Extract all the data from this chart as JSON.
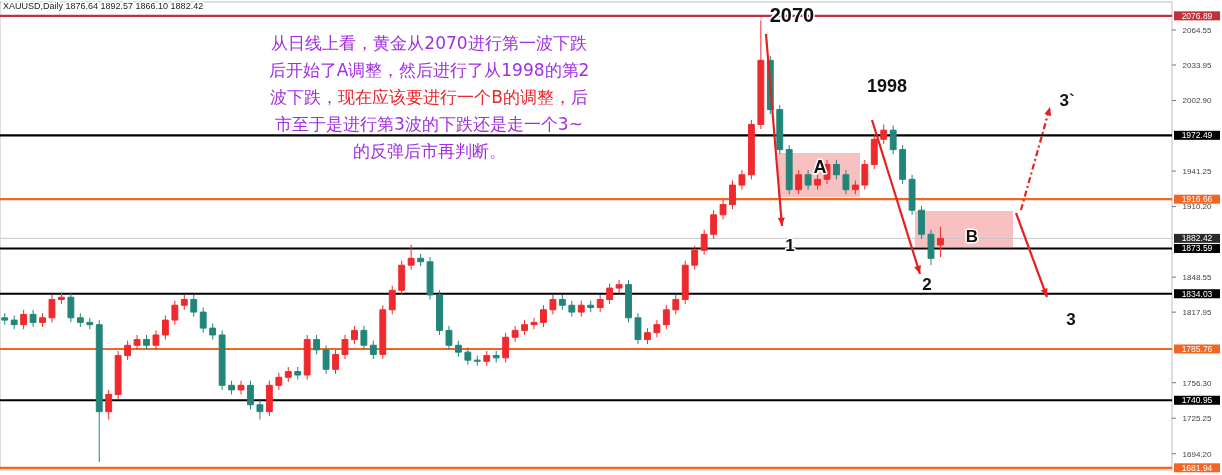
{
  "chart_data": {
    "type": "candlestick",
    "tick_labels": "y",
    "ylim": [
      1680,
      2089
    ],
    "yticks": [
      2064.55,
      2033.95,
      {
        "value": 2002.9,
        "label": "2002.90"
      },
      1941.25,
      {
        "value": 1910.2,
        "label": "1910.20"
      },
      1848.55,
      1817.95,
      {
        "value": 1756.3,
        "label": "1756.30"
      },
      1725.25,
      {
        "value": 1694.2,
        "label": "1694.20"
      }
    ],
    "categories": [
      null,
      null,
      null,
      null,
      null,
      null,
      null,
      null,
      null,
      null,
      null,
      null,
      null,
      null,
      null,
      null,
      null,
      null,
      null,
      null,
      null,
      null,
      null,
      null,
      null,
      null,
      null,
      null,
      null,
      null,
      null,
      null,
      null,
      null,
      null,
      null,
      null,
      null,
      null,
      null,
      null,
      null,
      null,
      null,
      null,
      null,
      null,
      null,
      null,
      null,
      null,
      null,
      null,
      null,
      null,
      null,
      null,
      null,
      null,
      null,
      null,
      null,
      null,
      null,
      null,
      null,
      null,
      null,
      null,
      null,
      null,
      null,
      null,
      null,
      null,
      null,
      null,
      null,
      null,
      null,
      null,
      null,
      null,
      null,
      null,
      null,
      null,
      null,
      null,
      null,
      null,
      null,
      null,
      null,
      null,
      null,
      null,
      null,
      null,
      null,
      null,
      null,
      null,
      null,
      null,
      null,
      null,
      null,
      null,
      null,
      null,
      null,
      null,
      null,
      null,
      null,
      null,
      null,
      null,
      null,
      null,
      null,
      null,
      null
    ],
    "ohlc": [
      [
        1813,
        1817,
        1807,
        1811
      ],
      [
        1811,
        1815,
        1803,
        1807
      ],
      [
        1807,
        1820,
        1803,
        1816
      ],
      [
        1816,
        1820,
        1805,
        1809
      ],
      [
        1809,
        1817,
        1805,
        1813
      ],
      [
        1813,
        1833,
        1809,
        1829
      ],
      [
        1829,
        1835,
        1825,
        1831
      ],
      [
        1831,
        1835,
        1809,
        1813
      ],
      [
        1813,
        1817,
        1805,
        1809
      ],
      [
        1809,
        1813,
        1803,
        1807
      ],
      [
        1807,
        1811,
        1687,
        1731
      ],
      [
        1731,
        1750,
        1724,
        1746
      ],
      [
        1746,
        1784,
        1742,
        1780
      ],
      [
        1780,
        1793,
        1776,
        1789
      ],
      [
        1789,
        1798,
        1785,
        1794
      ],
      [
        1794,
        1798,
        1785,
        1789
      ],
      [
        1789,
        1802,
        1785,
        1798
      ],
      [
        1798,
        1815,
        1794,
        1811
      ],
      [
        1811,
        1828,
        1807,
        1824
      ],
      [
        1824,
        1833,
        1820,
        1829
      ],
      [
        1829,
        1833,
        1814,
        1818
      ],
      [
        1818,
        1822,
        1800,
        1804
      ],
      [
        1804,
        1808,
        1794,
        1798
      ],
      [
        1798,
        1802,
        1750,
        1754
      ],
      [
        1754,
        1758,
        1746,
        1750
      ],
      [
        1750,
        1758,
        1746,
        1754
      ],
      [
        1754,
        1758,
        1733,
        1737
      ],
      [
        1737,
        1741,
        1724,
        1731
      ],
      [
        1731,
        1758,
        1727,
        1754
      ],
      [
        1754,
        1765,
        1750,
        1761
      ],
      [
        1761,
        1770,
        1757,
        1766
      ],
      [
        1766,
        1770,
        1759,
        1763
      ],
      [
        1763,
        1798,
        1759,
        1794
      ],
      [
        1794,
        1798,
        1781,
        1785
      ],
      [
        1785,
        1789,
        1764,
        1768
      ],
      [
        1768,
        1785,
        1764,
        1781
      ],
      [
        1781,
        1798,
        1777,
        1794
      ],
      [
        1794,
        1806,
        1790,
        1802
      ],
      [
        1802,
        1806,
        1785,
        1789
      ],
      [
        1789,
        1793,
        1777,
        1781
      ],
      [
        1781,
        1824,
        1777,
        1820
      ],
      [
        1820,
        1841,
        1816,
        1837
      ],
      [
        1837,
        1863,
        1833,
        1859
      ],
      [
        1859,
        1877,
        1855,
        1865
      ],
      [
        1865,
        1869,
        1858,
        1862
      ],
      [
        1862,
        1866,
        1829,
        1833
      ],
      [
        1833,
        1837,
        1798,
        1802
      ],
      [
        1802,
        1806,
        1785,
        1789
      ],
      [
        1789,
        1793,
        1779,
        1783
      ],
      [
        1783,
        1787,
        1772,
        1776
      ],
      [
        1776,
        1780,
        1771,
        1775
      ],
      [
        1775,
        1784,
        1771,
        1780
      ],
      [
        1780,
        1784,
        1774,
        1778
      ],
      [
        1778,
        1800,
        1774,
        1796
      ],
      [
        1796,
        1806,
        1792,
        1802
      ],
      [
        1802,
        1811,
        1798,
        1807
      ],
      [
        1807,
        1813,
        1803,
        1809
      ],
      [
        1809,
        1824,
        1805,
        1820
      ],
      [
        1820,
        1833,
        1816,
        1829
      ],
      [
        1829,
        1833,
        1820,
        1824
      ],
      [
        1824,
        1828,
        1814,
        1818
      ],
      [
        1818,
        1828,
        1814,
        1824
      ],
      [
        1824,
        1828,
        1818,
        1822
      ],
      [
        1822,
        1833,
        1818,
        1829
      ],
      [
        1829,
        1843,
        1825,
        1839
      ],
      [
        1839,
        1846,
        1835,
        1842
      ],
      [
        1842,
        1846,
        1809,
        1813
      ],
      [
        1813,
        1817,
        1790,
        1794
      ],
      [
        1794,
        1804,
        1790,
        1800
      ],
      [
        1800,
        1811,
        1796,
        1807
      ],
      [
        1807,
        1824,
        1803,
        1820
      ],
      [
        1820,
        1833,
        1816,
        1829
      ],
      [
        1829,
        1863,
        1825,
        1859
      ],
      [
        1859,
        1876,
        1855,
        1872
      ],
      [
        1872,
        1890,
        1868,
        1886
      ],
      [
        1886,
        1907,
        1882,
        1903
      ],
      [
        1903,
        1916,
        1899,
        1912
      ],
      [
        1912,
        1933,
        1908,
        1929
      ],
      [
        1929,
        1942,
        1925,
        1938
      ],
      [
        1938,
        1986,
        1934,
        1982
      ],
      [
        1982,
        2073,
        1978,
        2038
      ],
      [
        2038,
        2042,
        1991,
        1995
      ],
      [
        1995,
        1999,
        1956,
        1960
      ],
      [
        1960,
        1964,
        1921,
        1925
      ],
      [
        1925,
        1942,
        1921,
        1938
      ],
      [
        1938,
        1942,
        1925,
        1929
      ],
      [
        1929,
        1938,
        1925,
        1934
      ],
      [
        1934,
        1951,
        1930,
        1947
      ],
      [
        1947,
        1951,
        1934,
        1938
      ],
      [
        1938,
        1942,
        1921,
        1925
      ],
      [
        1925,
        1933,
        1921,
        1929
      ],
      [
        1929,
        1951,
        1925,
        1947
      ],
      [
        1947,
        1973,
        1943,
        1969
      ],
      [
        1969,
        1982,
        1965,
        1977
      ],
      [
        1977,
        1981,
        1956,
        1960
      ],
      [
        1960,
        1964,
        1930,
        1934
      ],
      [
        1934,
        1938,
        1903,
        1907
      ],
      [
        1907,
        1911,
        1882,
        1886
      ],
      [
        1886,
        1890,
        1859,
        1865
      ],
      [
        1876.64,
        1892.57,
        1866.1,
        1882.42
      ],
      null,
      null,
      null,
      null,
      null,
      null,
      null,
      null,
      null,
      null,
      null,
      null,
      null,
      null,
      null,
      null,
      null,
      null,
      null,
      null,
      null,
      null,
      null,
      null
    ],
    "ref_lines": [
      {
        "axis": "y",
        "value": 2076.89,
        "label": "2076.89",
        "color": "#c0313a"
      },
      {
        "axis": "y",
        "value": 1972.49,
        "label": "1972.49",
        "color": "#000000"
      },
      {
        "axis": "y",
        "value": 1916.66,
        "label": "1916.66",
        "color": "#f26522"
      },
      {
        "axis": "y",
        "value": 1882.42,
        "label": "1882.42",
        "color": "#c8c8c8"
      },
      {
        "axis": "y",
        "value": 1873.59,
        "label": "1873.59",
        "color": "#000000"
      },
      {
        "axis": "y",
        "value": 1834.03,
        "label": "1834.03",
        "color": "#000000"
      },
      {
        "axis": "y",
        "value": 1785.76,
        "label": "1785.76",
        "color": "#f26522"
      },
      {
        "axis": "y",
        "value": 1740.95,
        "label": "1740.95",
        "color": "#000000"
      },
      {
        "axis": "y",
        "value": 1681.94,
        "label": "1681.94",
        "color": "#f26522"
      }
    ],
    "annotations": [
      "XAUUSD,Daily  1876.64 1892.57 1866.10 1882.42",
      "从日线上看，黄金从2070进行第一波下跌后开始了A调整，然后进行了从1998的第2波下跌，",
      "现在应该要进行一个B的调整，",
      "后市至于是进行第3波的下跌还是走一个3~的反弹后市再判断。",
      "2070",
      "1998",
      "1",
      "2",
      "3",
      "3`",
      "A",
      "B"
    ]
  }
}
